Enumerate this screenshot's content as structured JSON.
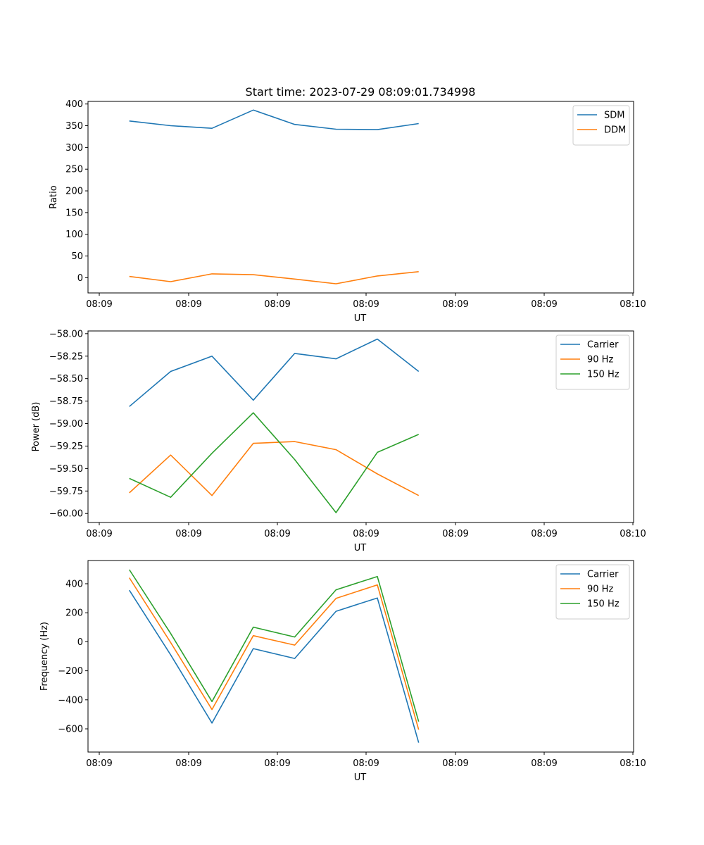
{
  "figure": {
    "title": "Start time: 2023-07-29 08:09:01.734998"
  },
  "chart_data": [
    {
      "type": "line",
      "xlabel": "UT",
      "ylabel": "Ratio",
      "x_tick_labels": [
        "08:09",
        "08:09",
        "08:09",
        "08:09",
        "08:09",
        "08:09",
        "08:10"
      ],
      "y_ticks": [
        0,
        50,
        100,
        150,
        200,
        250,
        300,
        350,
        400
      ],
      "y_tick_labels": [
        "0",
        "50",
        "100",
        "150",
        "200",
        "250",
        "300",
        "350",
        "400"
      ],
      "ylim": [
        -35,
        406
      ],
      "xlim": [
        0,
        13.2
      ],
      "x": [
        1,
        2,
        3,
        4,
        5,
        6,
        7,
        8
      ],
      "legend_position": "top-right",
      "series": [
        {
          "name": "SDM",
          "color": "#1f77b4",
          "values": [
            361,
            350,
            344,
            386,
            353,
            342,
            341,
            355
          ]
        },
        {
          "name": "DDM",
          "color": "#ff7f0e",
          "values": [
            3,
            -9,
            9,
            7,
            -3,
            -14,
            4,
            14
          ]
        }
      ]
    },
    {
      "type": "line",
      "xlabel": "UT",
      "ylabel": "Power (dB)",
      "x_tick_labels": [
        "08:09",
        "08:09",
        "08:09",
        "08:09",
        "08:09",
        "08:09",
        "08:10"
      ],
      "y_ticks": [
        -58.0,
        -58.25,
        -58.5,
        -58.75,
        -59.0,
        -59.25,
        -59.5,
        -59.75,
        -60.0
      ],
      "y_tick_labels": [
        "−58.00",
        "−58.25",
        "−58.50",
        "−58.75",
        "−59.00",
        "−59.25",
        "−59.50",
        "−59.75",
        "−60.00"
      ],
      "ylim": [
        -60.1,
        -57.97
      ],
      "xlim": [
        0,
        13.2
      ],
      "x": [
        1,
        2,
        3,
        4,
        5,
        6,
        7,
        8
      ],
      "legend_position": "top-right",
      "series": [
        {
          "name": "Carrier",
          "color": "#1f77b4",
          "values": [
            -58.81,
            -58.42,
            -58.25,
            -58.74,
            -58.22,
            -58.28,
            -58.06,
            -58.42
          ]
        },
        {
          "name": "90 Hz",
          "color": "#ff7f0e",
          "values": [
            -59.77,
            -59.35,
            -59.8,
            -59.22,
            -59.2,
            -59.29,
            -59.56,
            -59.8
          ]
        },
        {
          "name": "150 Hz",
          "color": "#2ca02c",
          "values": [
            -59.61,
            -59.82,
            -59.33,
            -58.88,
            -59.4,
            -59.99,
            -59.32,
            -59.12
          ]
        }
      ]
    },
    {
      "type": "line",
      "xlabel": "UT",
      "ylabel": "Frequency (Hz)",
      "x_tick_labels": [
        "08:09",
        "08:09",
        "08:09",
        "08:09",
        "08:09",
        "08:09",
        "08:10"
      ],
      "y_ticks": [
        400,
        200,
        0,
        -200,
        -400,
        -600
      ],
      "y_tick_labels": [
        "400",
        "200",
        "0",
        "−200",
        "−400",
        "−600"
      ],
      "ylim": [
        -760,
        560
      ],
      "xlim": [
        0,
        13.2
      ],
      "x": [
        1,
        2,
        3,
        4,
        5,
        6,
        7,
        8
      ],
      "legend_position": "top-right",
      "series": [
        {
          "name": "Carrier",
          "color": "#1f77b4",
          "values": [
            355,
            -90,
            -560,
            -47,
            -115,
            210,
            302,
            -695
          ]
        },
        {
          "name": "90 Hz",
          "color": "#ff7f0e",
          "values": [
            441,
            -5,
            -467,
            42,
            -23,
            299,
            392,
            -605
          ]
        },
        {
          "name": "150 Hz",
          "color": "#2ca02c",
          "values": [
            497,
            57,
            -412,
            101,
            33,
            358,
            450,
            -550
          ]
        }
      ]
    }
  ]
}
